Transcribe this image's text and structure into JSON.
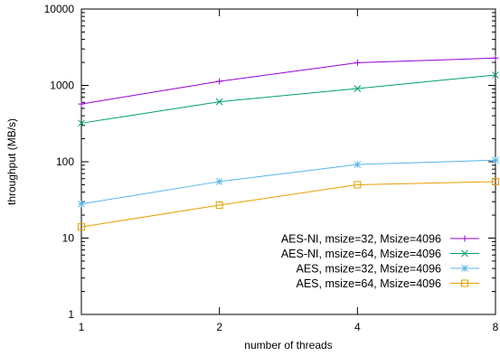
{
  "chart_data": {
    "type": "line",
    "title": "",
    "xlabel": "number of threads",
    "ylabel": "throughput (MB/s)",
    "x_scale": "log2",
    "y_scale": "log10",
    "xlim": [
      1,
      8
    ],
    "ylim": [
      1,
      10000
    ],
    "x": [
      1,
      2,
      4,
      8
    ],
    "x_tick_labels": [
      "1",
      "2",
      "4",
      "8"
    ],
    "y_tick_labels": [
      "1",
      "10",
      "100",
      "1000",
      "10000"
    ],
    "legend_position": "bottom-right",
    "grid": false,
    "series": [
      {
        "name": "AES-NI, msize=32, Msize=4096",
        "color": "#9400d3",
        "marker": "plus",
        "values": [
          570,
          1130,
          1980,
          2280
        ]
      },
      {
        "name": "AES-NI, msize=64, Msize=4096",
        "color": "#009e73",
        "marker": "cross",
        "values": [
          320,
          610,
          910,
          1370
        ]
      },
      {
        "name": "AES, msize=32, Msize=4096",
        "color": "#56b4e9",
        "marker": "star",
        "values": [
          28,
          55,
          92,
          105
        ]
      },
      {
        "name": "AES, msize=64, Msize=4096",
        "color": "#e69f00",
        "marker": "square",
        "values": [
          14,
          27,
          50,
          55
        ]
      }
    ]
  }
}
